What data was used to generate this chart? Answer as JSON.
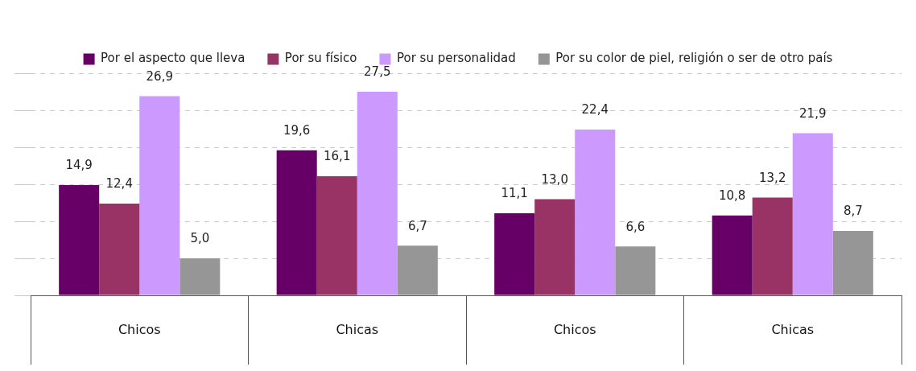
{
  "chart_data": {
    "type": "bar",
    "categories": [
      "Chicos",
      "Chicas",
      "Chicos",
      "Chicas"
    ],
    "series": [
      {
        "name": "Por el aspecto que lleva",
        "color": "#660066",
        "values": [
          14.9,
          19.6,
          11.1,
          10.8
        ],
        "value_labels": [
          "14,9",
          "19,6",
          "11,1",
          "10,8"
        ]
      },
      {
        "name": "Por su físico",
        "color": "#993366",
        "values": [
          12.4,
          16.1,
          13.0,
          13.2
        ],
        "value_labels": [
          "12,4",
          "16,1",
          "13,0",
          "13,2"
        ]
      },
      {
        "name": "Por su personalidad",
        "color": "#cc99ff",
        "values": [
          26.9,
          27.5,
          22.4,
          21.9
        ],
        "value_labels": [
          "26,9",
          "27,5",
          "22,4",
          "21,9"
        ]
      },
      {
        "name": "Por su color de piel, religión o ser de otro país",
        "color": "#969696",
        "values": [
          5.0,
          6.7,
          6.6,
          8.7
        ],
        "value_labels": [
          "5,0",
          "6,7",
          "6,6",
          "8,7"
        ]
      }
    ],
    "ylim": [
      0,
      30
    ],
    "yticks": [
      {
        "value": 0,
        "label": null
      },
      {
        "value": 5,
        "label": null
      },
      {
        "value": 10,
        "label": null
      },
      {
        "value": 15,
        "label": null
      },
      {
        "value": 20,
        "label": null
      },
      {
        "value": 25,
        "label": null
      },
      {
        "value": 30,
        "label": null
      }
    ],
    "tick_labels": "x",
    "grid": "y",
    "legend": "top"
  }
}
